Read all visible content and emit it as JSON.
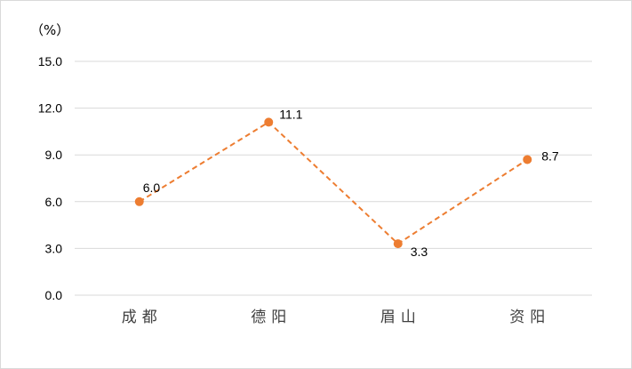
{
  "chart_data": {
    "type": "line",
    "ylabel": "（%）",
    "categories": [
      "成都",
      "德阳",
      "眉山",
      "资阳"
    ],
    "series": [
      {
        "values": [
          6.0,
          11.1,
          3.3,
          8.7
        ],
        "color": "#ED7D31",
        "line_style": "dashed"
      }
    ],
    "data_labels": [
      "6.0",
      "11.1",
      "3.3",
      "8.7"
    ],
    "yticks": [
      "0.0",
      "3.0",
      "6.0",
      "9.0",
      "12.0",
      "15.0"
    ],
    "ylim": [
      0,
      15
    ],
    "grid": true,
    "legend": "none"
  }
}
